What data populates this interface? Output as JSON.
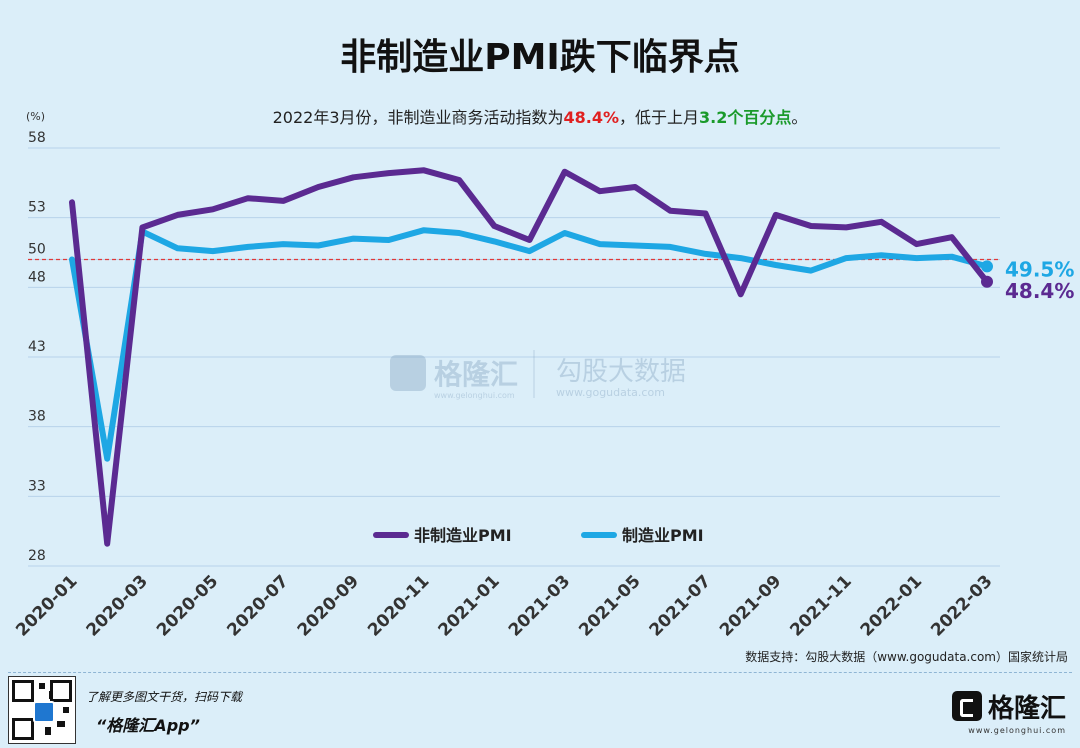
{
  "header": {
    "title": "非制造业PMI跌下临界点",
    "subtitle_pre": "2022年3月份，非制造业商务活动指数为",
    "subtitle_val1": "48.4%",
    "subtitle_mid": "，低于上月",
    "subtitle_val2": "3.2个百分点",
    "subtitle_end": "。"
  },
  "footer": {
    "source": "数据支持：勾股大数据（www.gogudata.com）国家统计局",
    "promo_line": "了解更多图文干货，扫码下载",
    "promo_app": "“格隆汇App”",
    "brand_name": "格隆汇",
    "brand_sub": "www.gelonghui.com"
  },
  "watermark": {
    "brand": "格隆汇",
    "brand_sub": "www.gelonghui.com",
    "data_brand": "勾股大数据",
    "data_url": "www.gogudata.com"
  },
  "colors": {
    "nonmanufacturing": "#5b2a91",
    "manufacturing": "#1ea7e4",
    "threshold": "#e03a3a",
    "grid": "#b7d3ea",
    "end_label_nonmfg": "#5b2a91",
    "end_label_mfg": "#1ea7e4"
  },
  "chart_data": {
    "type": "line",
    "ylabel": "(%)",
    "ylim": [
      28,
      58
    ],
    "yticks": [
      28,
      33,
      38,
      43,
      48,
      50,
      53,
      58
    ],
    "grid": true,
    "threshold": 50,
    "x": [
      "2020-01",
      "2020-02",
      "2020-03",
      "2020-04",
      "2020-05",
      "2020-06",
      "2020-07",
      "2020-08",
      "2020-09",
      "2020-10",
      "2020-11",
      "2020-12",
      "2021-01",
      "2021-02",
      "2021-03",
      "2021-04",
      "2021-05",
      "2021-06",
      "2021-07",
      "2021-08",
      "2021-09",
      "2021-10",
      "2021-11",
      "2021-12",
      "2022-01",
      "2022-02",
      "2022-03"
    ],
    "xtick_labels": [
      "2020-01",
      "2020-03",
      "2020-05",
      "2020-07",
      "2020-09",
      "2020-11",
      "2021-01",
      "2021-03",
      "2021-05",
      "2021-07",
      "2021-09",
      "2021-11",
      "2022-01",
      "2022-03"
    ],
    "legend_position": "bottom-center",
    "series": [
      {
        "name": "非制造业PMI",
        "values": [
          54.1,
          29.6,
          52.3,
          53.2,
          53.6,
          54.4,
          54.2,
          55.2,
          55.9,
          56.2,
          56.4,
          55.7,
          52.4,
          51.4,
          56.3,
          54.9,
          55.2,
          53.5,
          53.3,
          47.5,
          53.2,
          52.4,
          52.3,
          52.7,
          51.1,
          51.6,
          48.4
        ],
        "end_label": "48.4%"
      },
      {
        "name": "制造业PMI",
        "values": [
          50.0,
          35.7,
          52.0,
          50.8,
          50.6,
          50.9,
          51.1,
          51.0,
          51.5,
          51.4,
          52.1,
          51.9,
          51.3,
          50.6,
          51.9,
          51.1,
          51.0,
          50.9,
          50.4,
          50.1,
          49.6,
          49.2,
          50.1,
          50.3,
          50.1,
          50.2,
          49.5
        ],
        "end_label": "49.5%"
      }
    ]
  }
}
